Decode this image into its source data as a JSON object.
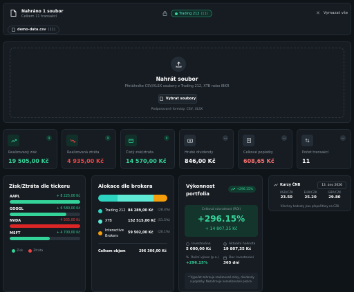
{
  "upload_bar": {
    "title": "Nahráno 1 soubor",
    "subtitle": "Celkem 11 transakcí",
    "badge": "Trading 212",
    "badge_count": "(11)",
    "clear_label": "Vymazat vše",
    "file_name": "demo-data.csv",
    "file_count": "(11)"
  },
  "dropzone": {
    "title": "Nahrát soubor",
    "subtitle": "Přetáhněte CSV/XLSX soubory z Trading 212, XTB nebo IBKR",
    "button": "Vybrat soubory",
    "formats": "Podporované formáty: CSV, XLSX"
  },
  "stats": [
    {
      "label": "Realizovaný zisk",
      "value": "19 505,00 Kč",
      "color": "#34d399",
      "icon": "trend-up-icon"
    },
    {
      "label": "Realizovaná ztráta",
      "value": "4 935,00 Kč",
      "color": "#ef4444",
      "icon": "trend-down-icon"
    },
    {
      "label": "Čistý zisk/ztráta",
      "value": "14 570,00 Kč",
      "color": "#34d399",
      "icon": "wallet-icon"
    },
    {
      "label": "Hrubé dividendy",
      "value": "846,00 Kč",
      "color": "#ffffff",
      "icon": "banknote-icon"
    },
    {
      "label": "Celkové poplatky",
      "value": "608,65 Kč",
      "color": "#f87171",
      "icon": "receipt-icon"
    },
    {
      "label": "Počet transakcí",
      "value": "11",
      "color": "#ffffff",
      "icon": "swap-icon"
    }
  ],
  "ticker_card": {
    "title": "Zisk/Ztráta dle tickeru",
    "rows": [
      {
        "ticker": "AAPL",
        "value": "+ 8 225,00 Kč",
        "fill": 1.0,
        "positive": true
      },
      {
        "ticker": "GOOGL",
        "value": "+ 6 580,00 Kč",
        "fill": 0.8,
        "positive": true
      },
      {
        "ticker": "NVDA",
        "value": "- 4 935,00 Kč",
        "fill": 1.0,
        "positive": false
      },
      {
        "ticker": "MSFT",
        "value": "+ 4 700,00 Kč",
        "fill": 0.57,
        "positive": true
      }
    ],
    "legend_profit": "Zisk",
    "legend_loss": "Ztráta"
  },
  "broker_card": {
    "title": "Alokace dle brokera",
    "brokers": [
      {
        "name": "Trading 212",
        "amount": "84 289,00 Kč",
        "pct": "(28.4%)",
        "share": 0.284,
        "color": "#2dd4bf"
      },
      {
        "name": "XTB",
        "amount": "152 515,00 Kč",
        "pct": "(51.5%)",
        "share": 0.515,
        "color": "#5eead4"
      },
      {
        "name": "Interactive Brokers",
        "amount": "59 502,00 Kč",
        "pct": "(20.1%)",
        "share": 0.201,
        "color": "#f59e0b"
      }
    ],
    "total_label": "Celkem objem",
    "total_value": "296 306,00 Kč"
  },
  "performance_card": {
    "title": "Výkonnost portfolia",
    "badge": "+296.15%",
    "roi_label": "Celková návratnost (ROI)",
    "roi_value": "+296.15%",
    "roi_amount": "+ 14 807,35 Kč",
    "invested_label": "Investováno",
    "invested_value": "5 000,00 Kč",
    "current_label": "Aktuální hodnota",
    "current_value": "19 807,35 Kč",
    "annual_label": "Roční výnos (p.a.)",
    "annual_value": "+296.15%",
    "since_label": "Doc investování",
    "since_value": "365 dní",
    "note": "* Výpočet zahrnuje realizované zisky, dividendy a poplatky. Nezahrnuje nerealizované pozice."
  },
  "cnb_card": {
    "title": "Kurzy ČNB",
    "date": "13. úno 2026",
    "rates": [
      {
        "pair": "USD/CZK",
        "value": "23.50"
      },
      {
        "pair": "EUR/CZK",
        "value": "25.20"
      },
      {
        "pair": "GBP/CZK",
        "value": "29.80"
      }
    ],
    "note": "Všechny hodnoty jsou přepočítány na CZK"
  }
}
